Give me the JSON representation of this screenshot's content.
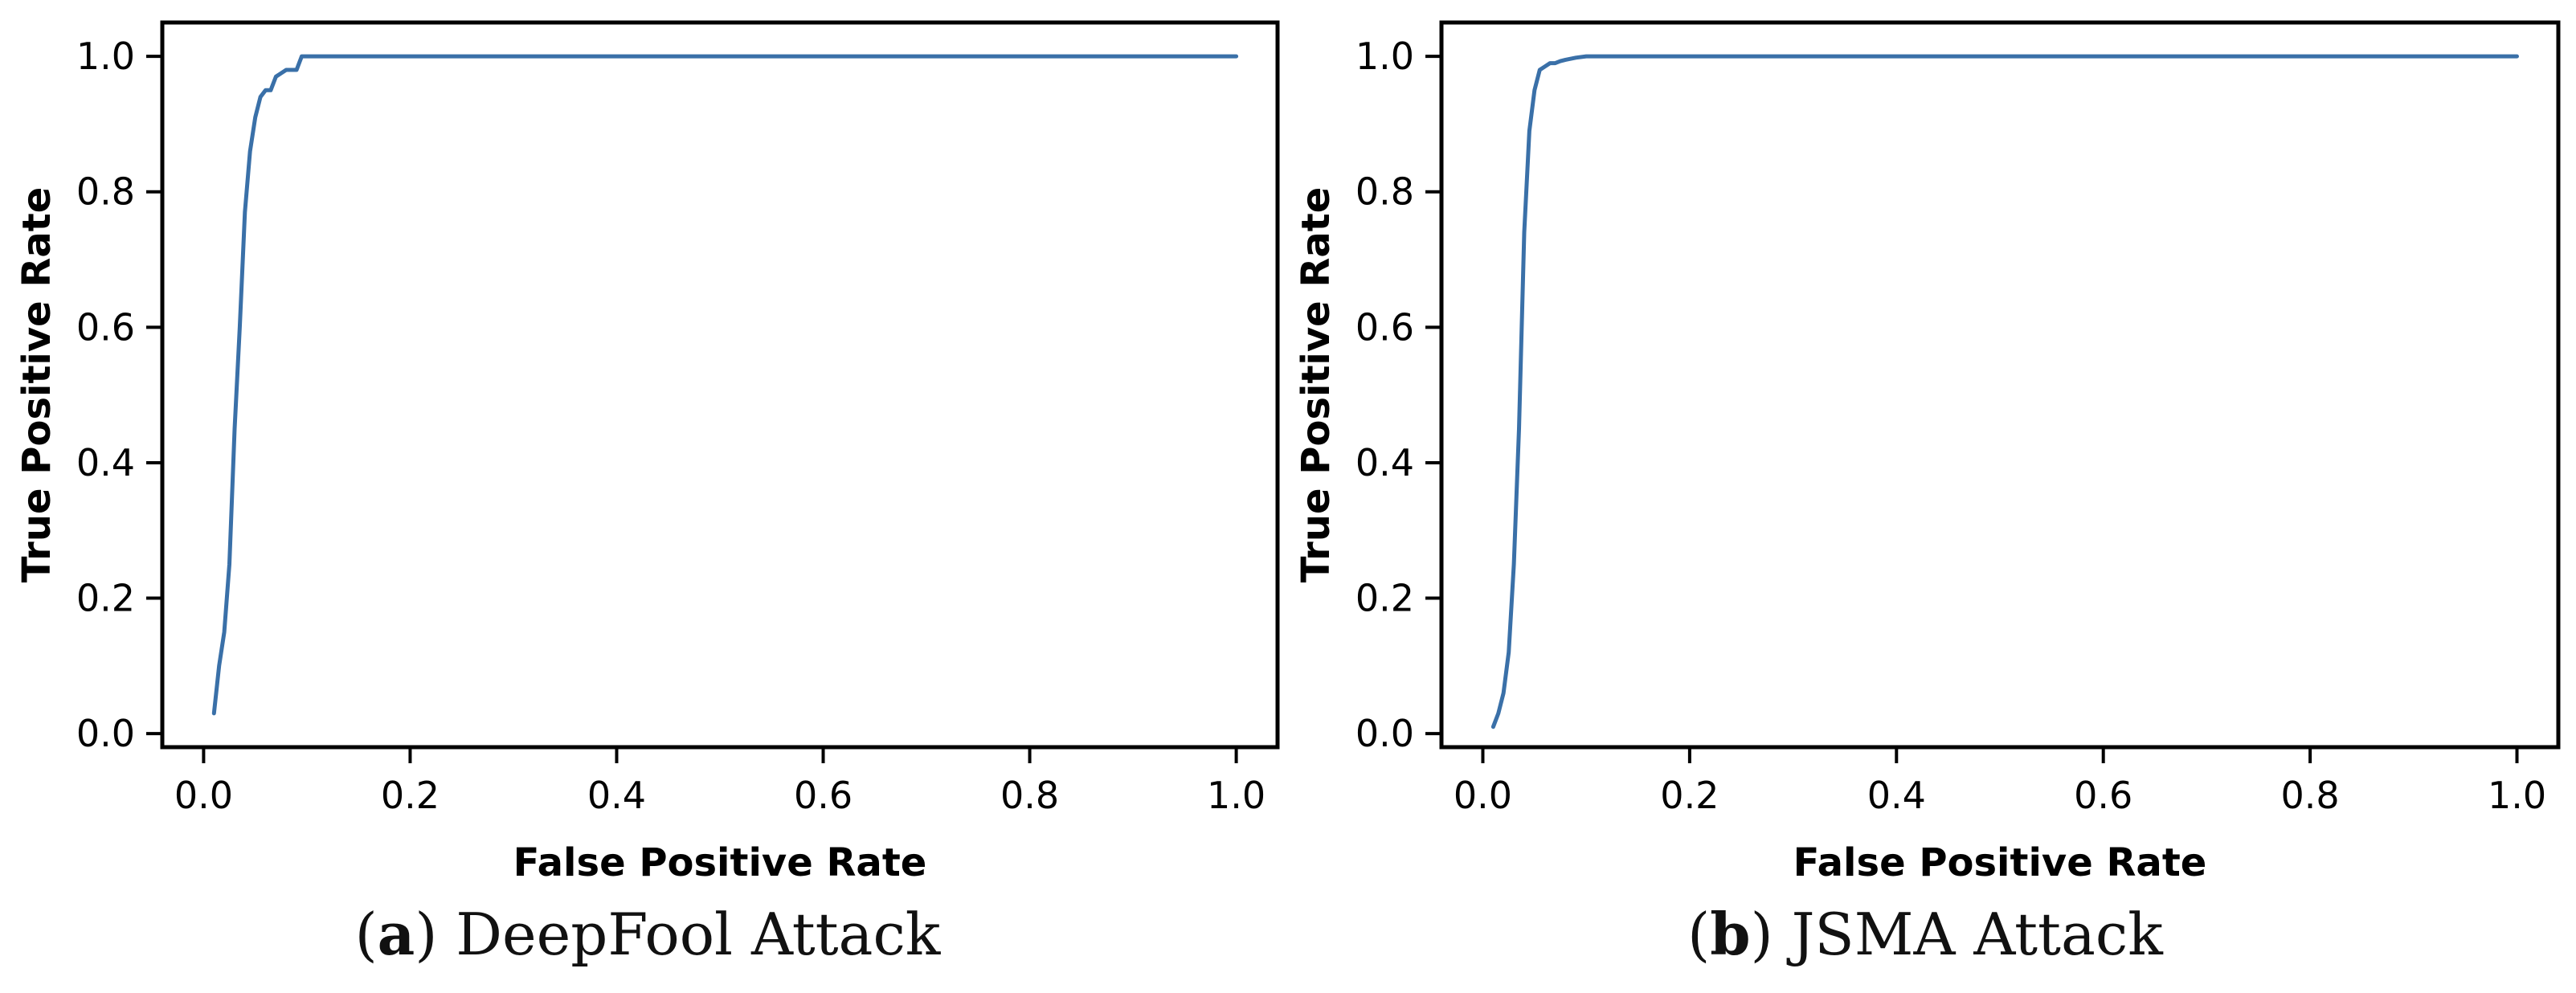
{
  "chart_data": [
    {
      "type": "line",
      "xlabel": "False Positive Rate",
      "ylabel": "True Positive Rate",
      "xlim": [
        -0.04,
        1.04
      ],
      "ylim": [
        -0.02,
        1.05
      ],
      "xticks": [
        0.0,
        0.2,
        0.4,
        0.6,
        0.8,
        1.0
      ],
      "xtick_labels": [
        "0.0",
        "0.2",
        "0.4",
        "0.6",
        "0.8",
        "1.0"
      ],
      "yticks": [
        0.0,
        0.2,
        0.4,
        0.6,
        0.8,
        1.0
      ],
      "ytick_labels": [
        "0.0",
        "0.2",
        "0.4",
        "0.6",
        "0.8",
        "1.0"
      ],
      "grid": false,
      "series": [
        {
          "color": "#3a70a8",
          "x": [
            0.01,
            0.015,
            0.02,
            0.025,
            0.03,
            0.035,
            0.04,
            0.045,
            0.05,
            0.055,
            0.06,
            0.065,
            0.07,
            0.075,
            0.08,
            0.085,
            0.09,
            0.095,
            0.1,
            0.2,
            0.4,
            0.6,
            0.8,
            1.0
          ],
          "y": [
            0.03,
            0.1,
            0.15,
            0.25,
            0.45,
            0.6,
            0.77,
            0.86,
            0.91,
            0.94,
            0.95,
            0.95,
            0.97,
            0.975,
            0.98,
            0.98,
            0.98,
            1.0,
            1.0,
            1.0,
            1.0,
            1.0,
            1.0,
            1.0
          ]
        }
      ]
    },
    {
      "type": "line",
      "xlabel": "False Positive Rate",
      "ylabel": "True Positive Rate",
      "xlim": [
        -0.04,
        1.04
      ],
      "ylim": [
        -0.02,
        1.05
      ],
      "xticks": [
        0.0,
        0.2,
        0.4,
        0.6,
        0.8,
        1.0
      ],
      "xtick_labels": [
        "0.0",
        "0.2",
        "0.4",
        "0.6",
        "0.8",
        "1.0"
      ],
      "yticks": [
        0.0,
        0.2,
        0.4,
        0.6,
        0.8,
        1.0
      ],
      "ytick_labels": [
        "0.0",
        "0.2",
        "0.4",
        "0.6",
        "0.8",
        "1.0"
      ],
      "grid": false,
      "series": [
        {
          "color": "#3a70a8",
          "x": [
            0.01,
            0.015,
            0.02,
            0.025,
            0.03,
            0.035,
            0.04,
            0.045,
            0.05,
            0.055,
            0.06,
            0.065,
            0.07,
            0.075,
            0.08,
            0.09,
            0.1,
            0.2,
            0.4,
            0.6,
            0.8,
            1.0
          ],
          "y": [
            0.01,
            0.03,
            0.06,
            0.12,
            0.25,
            0.45,
            0.74,
            0.89,
            0.95,
            0.98,
            0.985,
            0.99,
            0.99,
            0.993,
            0.995,
            0.998,
            1.0,
            1.0,
            1.0,
            1.0,
            1.0,
            1.0
          ]
        }
      ]
    }
  ],
  "captions": [
    {
      "label": "a",
      "text": "DeepFool Attack"
    },
    {
      "label": "b",
      "text": "JSMA Attack"
    }
  ]
}
